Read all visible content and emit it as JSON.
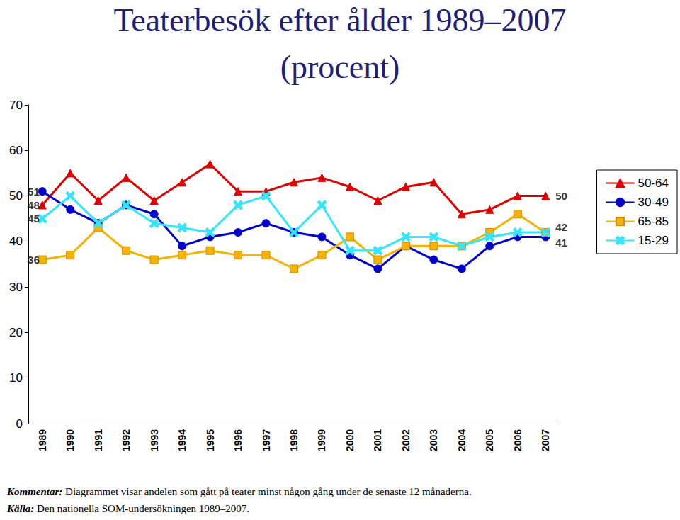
{
  "chart_data": {
    "type": "line",
    "title": "Teaterbesök efter ålder 1989–2007",
    "subtitle": "(procent)",
    "categories": [
      "1989",
      "1990",
      "1991",
      "1992",
      "1993",
      "1994",
      "1995",
      "1996",
      "1997",
      "1998",
      "1999",
      "2000",
      "2001",
      "2002",
      "2003",
      "2004",
      "2005",
      "2006",
      "2007"
    ],
    "series": [
      {
        "name": "50-64",
        "color": "#e00000",
        "marker": "triangle",
        "values": [
          48,
          55,
          49,
          54,
          49,
          53,
          57,
          51,
          51,
          53,
          54,
          52,
          49,
          52,
          53,
          46,
          47,
          50,
          50
        ]
      },
      {
        "name": "30-49",
        "color": "#0000cc",
        "marker": "circle",
        "values": [
          51,
          47,
          44,
          48,
          46,
          39,
          41,
          42,
          44,
          42,
          41,
          37,
          34,
          39,
          36,
          34,
          39,
          41,
          41
        ]
      },
      {
        "name": "65-85",
        "color": "#f5b400",
        "marker": "square",
        "values": [
          36,
          37,
          43,
          38,
          36,
          37,
          38,
          37,
          37,
          34,
          37,
          41,
          36,
          39,
          39,
          39,
          42,
          46,
          42
        ]
      },
      {
        "name": "15-29",
        "color": "#33e6ff",
        "marker": "x",
        "values": [
          45,
          50,
          44,
          48,
          44,
          43,
          42,
          48,
          50,
          42,
          48,
          38,
          38,
          41,
          41,
          39,
          41,
          42,
          42
        ]
      }
    ],
    "annotations": [
      {
        "text": "51",
        "x": "1989",
        "y": 51
      },
      {
        "text": "48",
        "x": "1989",
        "y": 48
      },
      {
        "text": "45",
        "x": "1989",
        "y": 45
      },
      {
        "text": "36",
        "x": "1989",
        "y": 36
      },
      {
        "text": "50",
        "x": "2007",
        "y": 50
      },
      {
        "text": "42",
        "x": "2007",
        "y": 42
      },
      {
        "text": "41",
        "x": "2007",
        "y": 41
      }
    ],
    "notes": [
      {
        "label": "Kommentar:",
        "text": "Diagrammet visar andelen som gått på teater minst någon gång under de senaste 12 månaderna."
      },
      {
        "label": "Källa:",
        "text": "Den nationella SOM-undersökningen 1989–2007."
      }
    ],
    "ylim": [
      0,
      70
    ],
    "yticks": [
      0,
      10,
      20,
      30,
      40,
      50,
      60,
      70
    ],
    "grid": false,
    "legend": "right"
  }
}
